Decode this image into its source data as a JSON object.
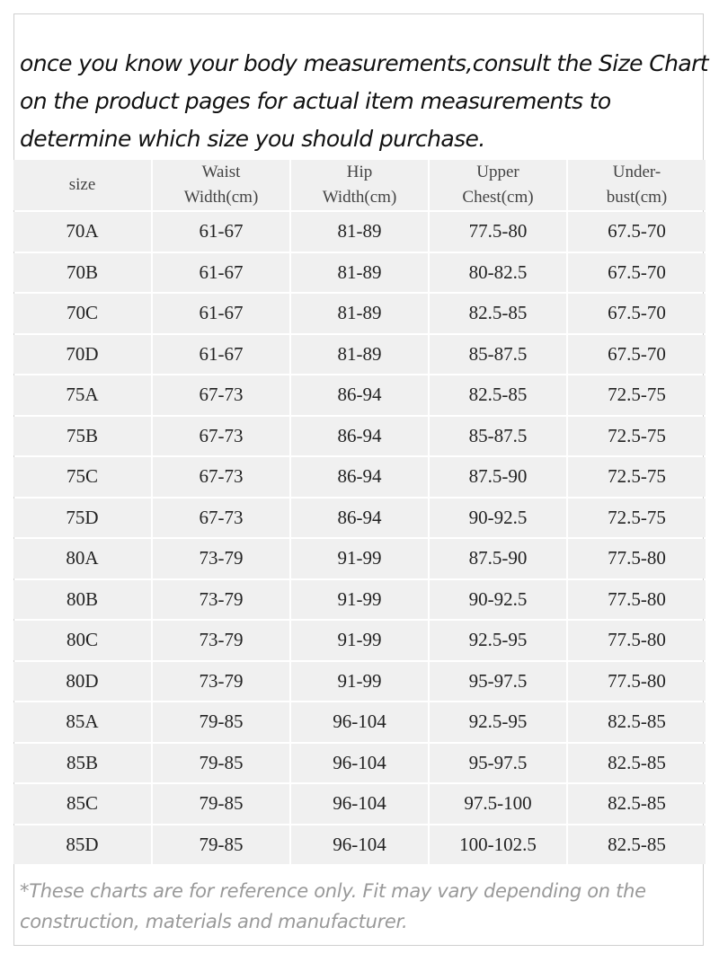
{
  "intro": [
    "once you know your body measurements,consult the Size Chart",
    "on the product pages for actual item measurements to",
    "determine which size you should purchase."
  ],
  "table": {
    "header": [
      [
        "size"
      ],
      [
        "Waist",
        "Width(cm)"
      ],
      [
        "Hip",
        "Width(cm)"
      ],
      [
        "Upper",
        "Chest(cm)"
      ],
      [
        "Under-",
        "bust(cm)"
      ]
    ],
    "rows": [
      [
        "70A",
        "61-67",
        "81-89",
        "77.5-80",
        "67.5-70"
      ],
      [
        "70B",
        "61-67",
        "81-89",
        "80-82.5",
        "67.5-70"
      ],
      [
        "70C",
        "61-67",
        "81-89",
        "82.5-85",
        "67.5-70"
      ],
      [
        "70D",
        "61-67",
        "81-89",
        "85-87.5",
        "67.5-70"
      ],
      [
        "75A",
        "67-73",
        "86-94",
        "82.5-85",
        "72.5-75"
      ],
      [
        "75B",
        "67-73",
        "86-94",
        "85-87.5",
        "72.5-75"
      ],
      [
        "75C",
        "67-73",
        "86-94",
        "87.5-90",
        "72.5-75"
      ],
      [
        "75D",
        "67-73",
        "86-94",
        "90-92.5",
        "72.5-75"
      ],
      [
        "80A",
        "73-79",
        "91-99",
        "87.5-90",
        "77.5-80"
      ],
      [
        "80B",
        "73-79",
        "91-99",
        "90-92.5",
        "77.5-80"
      ],
      [
        "80C",
        "73-79",
        "91-99",
        "92.5-95",
        "77.5-80"
      ],
      [
        "80D",
        "73-79",
        "91-99",
        "95-97.5",
        "77.5-80"
      ],
      [
        "85A",
        "79-85",
        "96-104",
        "92.5-95",
        "82.5-85"
      ],
      [
        "85B",
        "79-85",
        "96-104",
        "95-97.5",
        "82.5-85"
      ],
      [
        "85C",
        "79-85",
        "96-104",
        "97.5-100",
        "82.5-85"
      ],
      [
        "85D",
        "79-85",
        "96-104",
        "100-102.5",
        "82.5-85"
      ]
    ]
  },
  "note": [
    "*These charts are for reference only. Fit may vary depending on the",
    "construction, materials and manufacturer."
  ]
}
